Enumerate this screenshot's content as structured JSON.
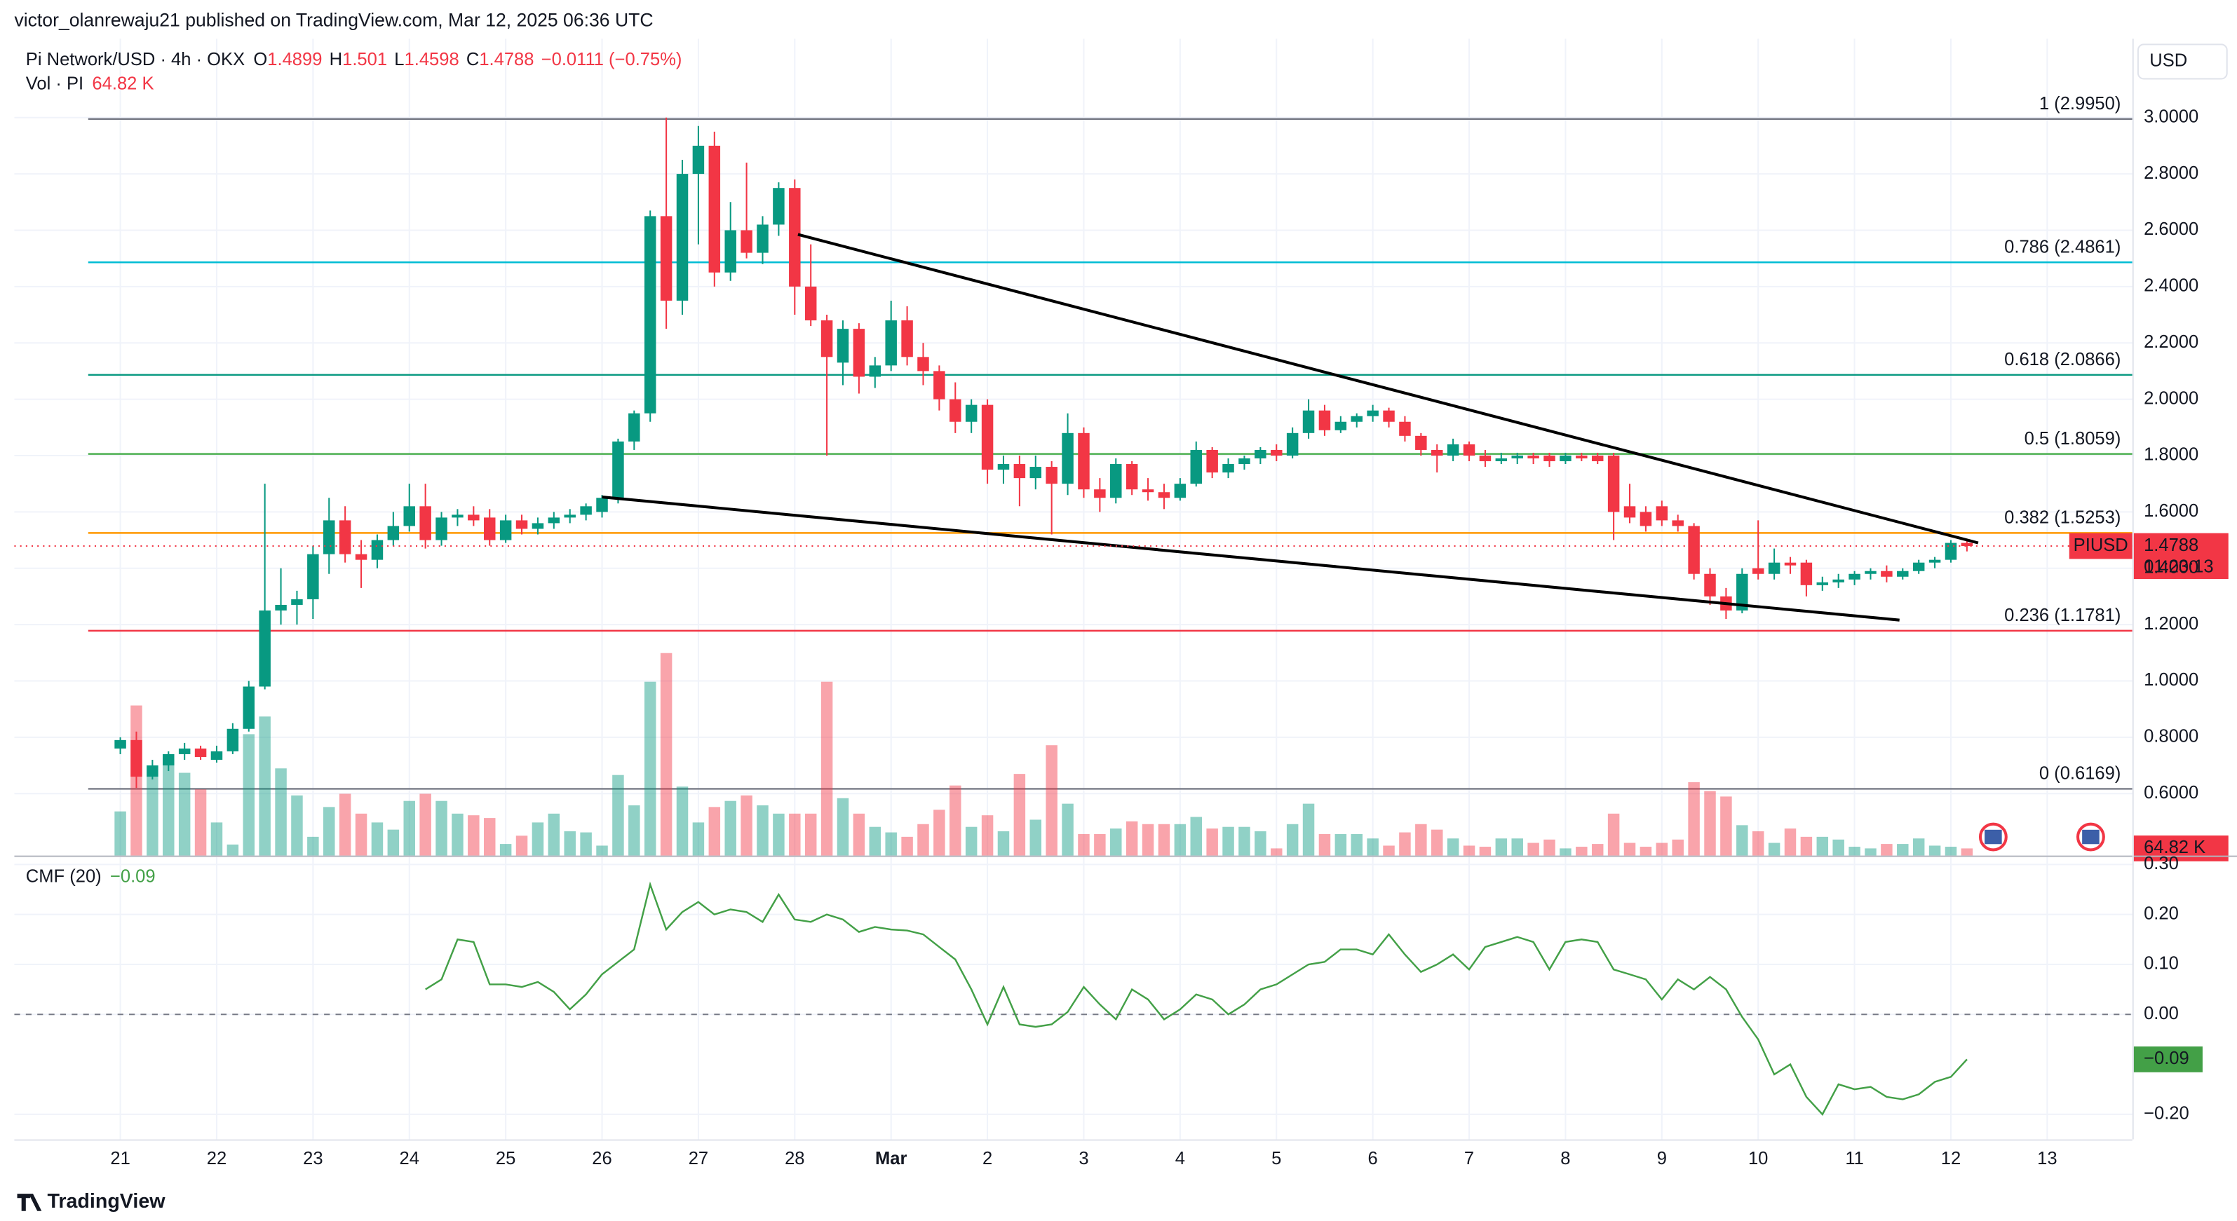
{
  "header": {
    "published": "victor_olanrewaju21 published on TradingView.com, Mar 12, 2025 06:36 UTC",
    "logo": "TradingView"
  },
  "chart_data": {
    "type": "candlestick",
    "title": "Pi Network/USD · 4h · OKX",
    "ohlc_keys": [
      "O",
      "H",
      "L",
      "C"
    ],
    "change_label": "−0.0111 (−0.75%)",
    "volume_title": "Vol · PI",
    "last_volume_label": "64.82 K",
    "currency": "USD",
    "symbol": "PIUSD",
    "countdown": "01:23:13",
    "up_color": "#089981",
    "down_color": "#f23645",
    "up_volume_color": "rgba(8,153,129,0.45)",
    "down_volume_color": "rgba(242,54,69,0.45)",
    "grid": true,
    "xlim": [
      -6.6,
      125.3
    ],
    "xticks": [
      {
        "value": 0,
        "label": "21"
      },
      {
        "value": 6,
        "label": "22"
      },
      {
        "value": 12,
        "label": "23"
      },
      {
        "value": 18,
        "label": "24"
      },
      {
        "value": 24,
        "label": "25"
      },
      {
        "value": 30,
        "label": "26"
      },
      {
        "value": 36,
        "label": "27"
      },
      {
        "value": 42,
        "label": "28"
      },
      {
        "value": 48,
        "label": "Mar"
      },
      {
        "value": 54,
        "label": "2"
      },
      {
        "value": 60,
        "label": "3"
      },
      {
        "value": 66,
        "label": "4"
      },
      {
        "value": 72,
        "label": "5"
      },
      {
        "value": 78,
        "label": "6"
      },
      {
        "value": 84,
        "label": "7"
      },
      {
        "value": 90,
        "label": "8"
      },
      {
        "value": 96,
        "label": "9"
      },
      {
        "value": 102,
        "label": "10"
      },
      {
        "value": 108,
        "label": "11"
      },
      {
        "value": 114,
        "label": "12"
      },
      {
        "value": 120,
        "label": "13"
      }
    ],
    "ylim": [
      0.38,
      3.28
    ],
    "yticks": [
      {
        "value": 3.0,
        "label": "3.0000"
      },
      {
        "value": 2.8,
        "label": "2.8000"
      },
      {
        "value": 2.6,
        "label": "2.6000"
      },
      {
        "value": 2.4,
        "label": "2.4000"
      },
      {
        "value": 2.2,
        "label": "2.2000"
      },
      {
        "value": 2.0,
        "label": "2.0000"
      },
      {
        "value": 1.8,
        "label": "1.8000"
      },
      {
        "value": 1.6,
        "label": "1.6000"
      },
      {
        "value": 1.4,
        "label": "1.4000"
      },
      {
        "value": 1.2,
        "label": "1.2000"
      },
      {
        "value": 1.0,
        "label": "1.0000"
      },
      {
        "value": 0.8,
        "label": "0.8000"
      },
      {
        "value": 0.6,
        "label": "0.6000"
      }
    ],
    "volume_lim": [
      0,
      2000
    ],
    "ohlc": [
      [
        0.76,
        0.8,
        0.74,
        0.79
      ],
      [
        0.79,
        0.82,
        0.62,
        0.66
      ],
      [
        0.66,
        0.72,
        0.65,
        0.7
      ],
      [
        0.7,
        0.75,
        0.68,
        0.74
      ],
      [
        0.74,
        0.78,
        0.72,
        0.76
      ],
      [
        0.76,
        0.77,
        0.72,
        0.73
      ],
      [
        0.72,
        0.77,
        0.71,
        0.75
      ],
      [
        0.75,
        0.85,
        0.74,
        0.83
      ],
      [
        0.83,
        1.0,
        0.82,
        0.98
      ],
      [
        0.98,
        1.7,
        0.97,
        1.25
      ],
      [
        1.25,
        1.4,
        1.2,
        1.27
      ],
      [
        1.27,
        1.32,
        1.2,
        1.29
      ],
      [
        1.29,
        1.48,
        1.22,
        1.45
      ],
      [
        1.45,
        1.65,
        1.38,
        1.57
      ],
      [
        1.57,
        1.62,
        1.42,
        1.45
      ],
      [
        1.45,
        1.5,
        1.33,
        1.43
      ],
      [
        1.43,
        1.52,
        1.4,
        1.5
      ],
      [
        1.5,
        1.6,
        1.48,
        1.55
      ],
      [
        1.55,
        1.7,
        1.53,
        1.62
      ],
      [
        1.62,
        1.7,
        1.47,
        1.5
      ],
      [
        1.5,
        1.6,
        1.48,
        1.58
      ],
      [
        1.58,
        1.61,
        1.55,
        1.59
      ],
      [
        1.59,
        1.62,
        1.55,
        1.57
      ],
      [
        1.58,
        1.61,
        1.48,
        1.5
      ],
      [
        1.5,
        1.59,
        1.49,
        1.57
      ],
      [
        1.57,
        1.59,
        1.52,
        1.54
      ],
      [
        1.54,
        1.58,
        1.52,
        1.56
      ],
      [
        1.56,
        1.6,
        1.54,
        1.58
      ],
      [
        1.58,
        1.61,
        1.56,
        1.59
      ],
      [
        1.59,
        1.63,
        1.57,
        1.62
      ],
      [
        1.6,
        1.66,
        1.58,
        1.65
      ],
      [
        1.65,
        1.86,
        1.63,
        1.85
      ],
      [
        1.85,
        1.96,
        1.82,
        1.95
      ],
      [
        1.95,
        2.67,
        1.92,
        2.65
      ],
      [
        2.65,
        3.0,
        2.25,
        2.35
      ],
      [
        2.35,
        2.85,
        2.3,
        2.8
      ],
      [
        2.8,
        2.97,
        2.55,
        2.9
      ],
      [
        2.9,
        2.95,
        2.4,
        2.45
      ],
      [
        2.45,
        2.7,
        2.42,
        2.6
      ],
      [
        2.6,
        2.84,
        2.5,
        2.52
      ],
      [
        2.52,
        2.65,
        2.48,
        2.62
      ],
      [
        2.62,
        2.77,
        2.58,
        2.75
      ],
      [
        2.75,
        2.78,
        2.3,
        2.4
      ],
      [
        2.4,
        2.55,
        2.26,
        2.28
      ],
      [
        2.28,
        2.3,
        1.8,
        2.15
      ],
      [
        2.13,
        2.28,
        2.05,
        2.25
      ],
      [
        2.25,
        2.27,
        2.02,
        2.08
      ],
      [
        2.08,
        2.15,
        2.04,
        2.12
      ],
      [
        2.12,
        2.35,
        2.1,
        2.28
      ],
      [
        2.28,
        2.33,
        2.12,
        2.15
      ],
      [
        2.15,
        2.2,
        2.05,
        2.1
      ],
      [
        2.1,
        2.12,
        1.96,
        2.0
      ],
      [
        2.0,
        2.06,
        1.88,
        1.92
      ],
      [
        1.92,
        2.0,
        1.88,
        1.98
      ],
      [
        1.98,
        2.0,
        1.7,
        1.75
      ],
      [
        1.75,
        1.8,
        1.7,
        1.77
      ],
      [
        1.77,
        1.8,
        1.62,
        1.72
      ],
      [
        1.72,
        1.8,
        1.68,
        1.76
      ],
      [
        1.76,
        1.78,
        1.52,
        1.7
      ],
      [
        1.7,
        1.95,
        1.66,
        1.88
      ],
      [
        1.88,
        1.9,
        1.65,
        1.68
      ],
      [
        1.68,
        1.72,
        1.6,
        1.65
      ],
      [
        1.65,
        1.79,
        1.63,
        1.77
      ],
      [
        1.77,
        1.78,
        1.66,
        1.68
      ],
      [
        1.68,
        1.72,
        1.64,
        1.67
      ],
      [
        1.67,
        1.7,
        1.61,
        1.65
      ],
      [
        1.65,
        1.72,
        1.64,
        1.7
      ],
      [
        1.7,
        1.85,
        1.69,
        1.82
      ],
      [
        1.82,
        1.83,
        1.72,
        1.74
      ],
      [
        1.74,
        1.79,
        1.72,
        1.77
      ],
      [
        1.77,
        1.8,
        1.75,
        1.79
      ],
      [
        1.79,
        1.83,
        1.77,
        1.82
      ],
      [
        1.82,
        1.84,
        1.78,
        1.8
      ],
      [
        1.8,
        1.9,
        1.79,
        1.88
      ],
      [
        1.88,
        2.0,
        1.86,
        1.96
      ],
      [
        1.96,
        1.98,
        1.87,
        1.89
      ],
      [
        1.89,
        1.94,
        1.88,
        1.92
      ],
      [
        1.92,
        1.95,
        1.9,
        1.94
      ],
      [
        1.94,
        1.98,
        1.92,
        1.96
      ],
      [
        1.96,
        1.97,
        1.9,
        1.92
      ],
      [
        1.92,
        1.94,
        1.85,
        1.87
      ],
      [
        1.87,
        1.88,
        1.8,
        1.82
      ],
      [
        1.82,
        1.84,
        1.74,
        1.8
      ],
      [
        1.8,
        1.86,
        1.78,
        1.84
      ],
      [
        1.84,
        1.85,
        1.78,
        1.8
      ],
      [
        1.8,
        1.82,
        1.76,
        1.78
      ],
      [
        1.78,
        1.81,
        1.77,
        1.79
      ],
      [
        1.79,
        1.81,
        1.77,
        1.8
      ],
      [
        1.8,
        1.81,
        1.77,
        1.79
      ],
      [
        1.8,
        1.81,
        1.76,
        1.78
      ],
      [
        1.78,
        1.81,
        1.77,
        1.8
      ],
      [
        1.8,
        1.81,
        1.78,
        1.79
      ],
      [
        1.8,
        1.81,
        1.77,
        1.78
      ],
      [
        1.8,
        1.81,
        1.5,
        1.6
      ],
      [
        1.62,
        1.7,
        1.56,
        1.58
      ],
      [
        1.6,
        1.62,
        1.53,
        1.55
      ],
      [
        1.62,
        1.64,
        1.55,
        1.57
      ],
      [
        1.57,
        1.59,
        1.53,
        1.55
      ],
      [
        1.55,
        1.56,
        1.36,
        1.38
      ],
      [
        1.38,
        1.4,
        1.27,
        1.3
      ],
      [
        1.3,
        1.33,
        1.22,
        1.25
      ],
      [
        1.25,
        1.4,
        1.24,
        1.38
      ],
      [
        1.4,
        1.57,
        1.36,
        1.38
      ],
      [
        1.38,
        1.47,
        1.36,
        1.42
      ],
      [
        1.42,
        1.44,
        1.38,
        1.41
      ],
      [
        1.42,
        1.43,
        1.3,
        1.34
      ],
      [
        1.34,
        1.37,
        1.32,
        1.35
      ],
      [
        1.35,
        1.38,
        1.33,
        1.36
      ],
      [
        1.36,
        1.39,
        1.34,
        1.38
      ],
      [
        1.38,
        1.4,
        1.36,
        1.39
      ],
      [
        1.39,
        1.41,
        1.35,
        1.37
      ],
      [
        1.37,
        1.4,
        1.36,
        1.39
      ],
      [
        1.39,
        1.43,
        1.38,
        1.42
      ],
      [
        1.42,
        1.44,
        1.4,
        1.43
      ],
      [
        1.43,
        1.5,
        1.42,
        1.49
      ],
      [
        1.4899,
        1.501,
        1.4598,
        1.4788
      ]
    ],
    "volume": [
      400,
      1360,
      715,
      870,
      750,
      600,
      300,
      100,
      1100,
      1260,
      790,
      545,
      170,
      440,
      560,
      380,
      300,
      235,
      495,
      560,
      495,
      380,
      365,
      340,
      105,
      180,
      300,
      380,
      220,
      210,
      90,
      730,
      455,
      1575,
      1835,
      625,
      300,
      440,
      495,
      545,
      455,
      380,
      380,
      380,
      1575,
      520,
      380,
      260,
      210,
      170,
      285,
      415,
      635,
      260,
      365,
      220,
      740,
      325,
      1000,
      470,
      195,
      195,
      245,
      310,
      285,
      285,
      285,
      350,
      245,
      260,
      260,
      220,
      65,
      285,
      470,
      195,
      195,
      195,
      155,
      90,
      210,
      285,
      235,
      155,
      90,
      80,
      155,
      155,
      115,
      145,
      65,
      80,
      105,
      380,
      115,
      80,
      115,
      145,
      665,
      585,
      535,
      275,
      220,
      115,
      245,
      170,
      170,
      145,
      80,
      65,
      105,
      105,
      155,
      90,
      80,
      64.82
    ],
    "fib_levels": [
      {
        "label": "1 (2.9950)",
        "value": 2.995,
        "color": "#787b86"
      },
      {
        "label": "0.786 (2.4861)",
        "value": 2.4861,
        "color": "#00bcd4"
      },
      {
        "label": "0.618 (2.0866)",
        "value": 2.0866,
        "color": "#089981"
      },
      {
        "label": "0.5 (1.8059)",
        "value": 1.8059,
        "color": "#4caf50"
      },
      {
        "label": "0.382 (1.5253)",
        "value": 1.5253,
        "color": "#ff9800"
      },
      {
        "label": "0.236 (1.1781)",
        "value": 1.1781,
        "color": "#f23645"
      },
      {
        "label": "0 (0.6169)",
        "value": 0.6169,
        "color": "#787b86"
      }
    ],
    "trendlines": [
      {
        "x": [
          42.2,
          115.7
        ],
        "y": [
          2.585,
          1.49
        ]
      },
      {
        "x": [
          30,
          110.8
        ],
        "y": [
          1.653,
          1.216
        ]
      }
    ],
    "cmf": {
      "title": "CMF (20)",
      "color": "#43a047",
      "last_label": "−0.09",
      "ylim": [
        -0.25,
        0.315
      ],
      "yticks": [
        {
          "value": 0.3,
          "label": "0.30"
        },
        {
          "value": 0.2,
          "label": "0.20"
        },
        {
          "value": 0.1,
          "label": "0.10"
        },
        {
          "value": 0,
          "label": "0.00"
        },
        {
          "value": -0.2,
          "label": "−0.20"
        }
      ],
      "values": [
        null,
        null,
        null,
        null,
        null,
        null,
        null,
        null,
        null,
        null,
        null,
        null,
        null,
        null,
        null,
        null,
        null,
        null,
        null,
        0.05,
        0.07,
        0.15,
        0.145,
        0.06,
        0.06,
        0.055,
        0.065,
        0.045,
        0.01,
        0.04,
        0.08,
        0.105,
        0.13,
        0.26,
        0.17,
        0.205,
        0.225,
        0.2,
        0.21,
        0.205,
        0.185,
        0.24,
        0.19,
        0.185,
        0.2,
        0.19,
        0.165,
        0.175,
        0.17,
        0.168,
        0.16,
        0.135,
        0.11,
        0.05,
        -0.02,
        0.055,
        -0.02,
        -0.025,
        -0.02,
        0.005,
        0.055,
        0.02,
        -0.01,
        0.05,
        0.03,
        -0.01,
        0.01,
        0.04,
        0.03,
        0.0,
        0.02,
        0.05,
        0.06,
        0.08,
        0.1,
        0.105,
        0.13,
        0.13,
        0.12,
        0.16,
        0.12,
        0.085,
        0.1,
        0.12,
        0.09,
        0.135,
        0.145,
        0.155,
        0.145,
        0.09,
        0.145,
        0.15,
        0.145,
        0.09,
        0.08,
        0.07,
        0.03,
        0.07,
        0.05,
        0.075,
        0.05,
        -0.005,
        -0.05,
        -0.12,
        -0.1,
        -0.165,
        -0.2,
        -0.14,
        -0.15,
        -0.145,
        -0.165,
        -0.17,
        -0.16,
        -0.135,
        -0.125,
        -0.09
      ]
    }
  }
}
